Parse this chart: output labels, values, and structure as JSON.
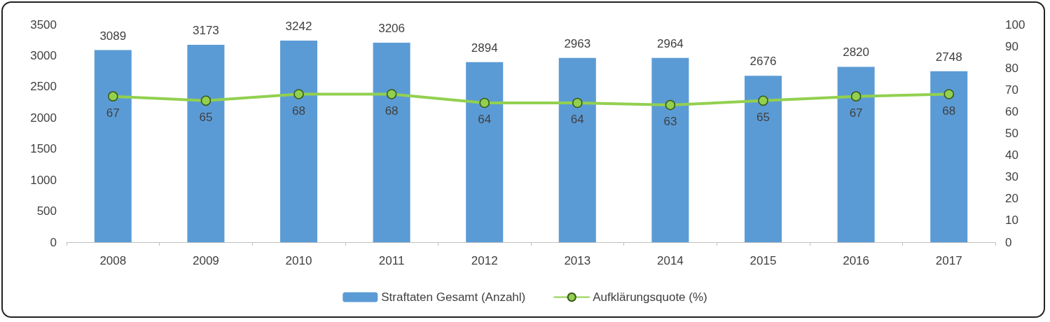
{
  "chart_data": {
    "type": "bar",
    "categories": [
      "2008",
      "2009",
      "2010",
      "2011",
      "2012",
      "2013",
      "2014",
      "2015",
      "2016",
      "2017"
    ],
    "series": [
      {
        "name": "Straftaten Gesamt (Anzahl)",
        "color": "#5b9bd5",
        "values": [
          3089,
          3173,
          3242,
          3206,
          2894,
          2963,
          2964,
          2676,
          2820,
          2748
        ]
      },
      {
        "name": "Aufklärungsquote (%)",
        "type": "line",
        "axis": "y2",
        "color": "#92d050",
        "marker": "circle",
        "values": [
          67,
          65,
          68,
          68,
          64,
          64,
          63,
          65,
          67,
          68
        ]
      }
    ],
    "ylim": [
      0,
      3500
    ],
    "yticks": [
      0,
      500,
      1000,
      1500,
      2000,
      2500,
      3000,
      3500
    ],
    "y2lim": [
      0,
      100
    ],
    "y2ticks": [
      0,
      10,
      20,
      30,
      40,
      50,
      60,
      70,
      80,
      90,
      100
    ],
    "data_labels": true,
    "legend": "bottom",
    "grid": false
  }
}
